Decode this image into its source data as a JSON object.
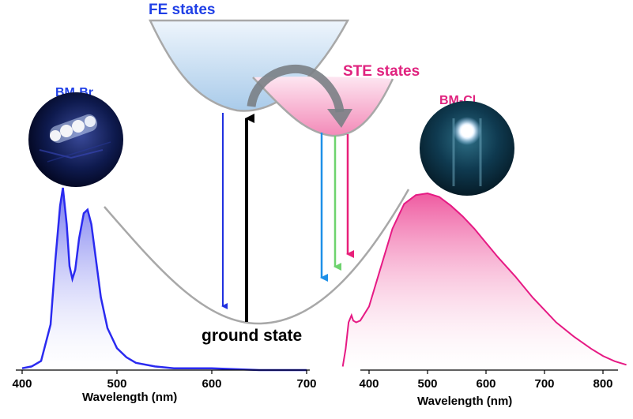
{
  "labels": {
    "fe_states": "FE states",
    "ste_states": "STE states",
    "ground_state": "ground state",
    "bm_br": "BM-Br",
    "bm_cl": "BM-Cl"
  },
  "colors": {
    "fe_label": "#1f3fe6",
    "ste_label": "#e0237f",
    "bm_cl_label": "#e0237f",
    "bm_br_label": "#1f3fe6",
    "fe_fill": "#b9d6f0",
    "ste_fill": "#f7a9cb",
    "curve_gray": "#a8a8a8",
    "arrow_fe": "#2030e0",
    "arrow_cyan": "#1e90e8",
    "arrow_green": "#6ed36e",
    "arrow_pink": "#e8207a",
    "arrow_excite": "#000000",
    "br_spectrum": "#2a2af0",
    "cl_spectrum": "#e61a84"
  },
  "chart_data": [
    {
      "type": "line",
      "series_label": "BM-Br",
      "xlabel": "Wavelength (nm)",
      "ylabel": "",
      "xlim": [
        400,
        700
      ],
      "xticks": [
        "400",
        "500",
        "600",
        "700"
      ],
      "x": [
        400,
        410,
        420,
        430,
        435,
        440,
        443,
        447,
        450,
        453,
        456,
        460,
        465,
        469,
        473,
        478,
        483,
        490,
        500,
        510,
        520,
        540,
        560,
        600,
        650,
        700
      ],
      "y": [
        0.01,
        0.02,
        0.05,
        0.25,
        0.6,
        0.9,
        1.0,
        0.8,
        0.57,
        0.5,
        0.55,
        0.72,
        0.86,
        0.88,
        0.8,
        0.6,
        0.4,
        0.23,
        0.12,
        0.07,
        0.04,
        0.02,
        0.01,
        0.01,
        0.0,
        0.0
      ]
    },
    {
      "type": "line",
      "series_label": "BM-Cl",
      "xlabel": "Wavelength (nm)",
      "ylabel": "",
      "xlim": [
        350,
        850
      ],
      "xticks": [
        "400",
        "500",
        "600",
        "700",
        "800"
      ],
      "x": [
        355,
        360,
        365,
        370,
        373,
        378,
        385,
        400,
        420,
        440,
        460,
        480,
        500,
        520,
        540,
        560,
        580,
        600,
        620,
        650,
        680,
        700,
        720,
        750,
        780,
        800,
        820,
        840
      ],
      "y": [
        0.02,
        0.12,
        0.27,
        0.31,
        0.28,
        0.27,
        0.28,
        0.36,
        0.58,
        0.8,
        0.94,
        0.99,
        1.0,
        0.98,
        0.93,
        0.87,
        0.8,
        0.72,
        0.64,
        0.53,
        0.41,
        0.34,
        0.27,
        0.19,
        0.12,
        0.08,
        0.05,
        0.03
      ]
    }
  ]
}
